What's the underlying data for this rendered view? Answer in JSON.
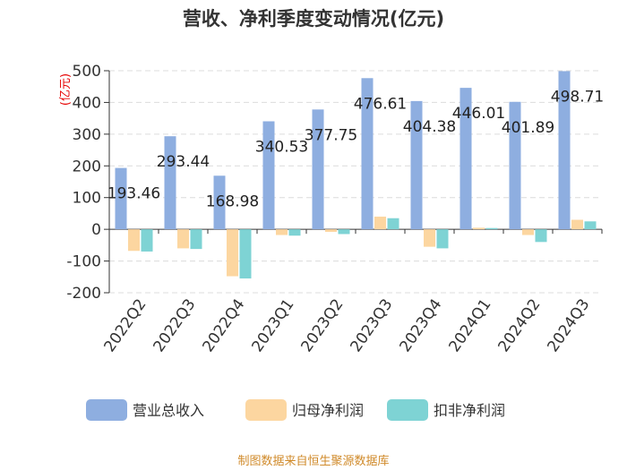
{
  "chart_data": {
    "type": "bar",
    "title": "营收、净利季度变动情况(亿元)",
    "ylabel": "(亿元)",
    "xlabel": "",
    "ylim": [
      -200,
      500
    ],
    "yticks": [
      500,
      400,
      300,
      200,
      100,
      0,
      -100,
      -200
    ],
    "grid": true,
    "legend_position": "bottom",
    "categories": [
      "2022Q2",
      "2022Q3",
      "2022Q4",
      "2023Q1",
      "2023Q2",
      "2023Q3",
      "2023Q4",
      "2024Q1",
      "2024Q2",
      "2024Q3"
    ],
    "series": [
      {
        "name": "营业总收入",
        "color": "#8eaee0",
        "values": [
          193.46,
          293.44,
          168.98,
          340.53,
          377.75,
          476.61,
          404.38,
          446.01,
          401.89,
          498.71
        ],
        "labels": [
          "193.46",
          "293.44",
          "168.98",
          "340.53",
          "377.75",
          "476.61",
          "404.38",
          "446.01",
          "401.89",
          "498.71"
        ]
      },
      {
        "name": "归母净利润",
        "color": "#fcd6a0",
        "values": [
          -68,
          -60,
          -148,
          -18,
          -8,
          40,
          -55,
          5,
          -18,
          30
        ]
      },
      {
        "name": "扣非净利润",
        "color": "#7ed3d4",
        "values": [
          -70,
          -62,
          -155,
          -20,
          -15,
          35,
          -60,
          4,
          -40,
          25
        ]
      }
    ],
    "source": "制图数据来自恒生聚源数据库"
  }
}
